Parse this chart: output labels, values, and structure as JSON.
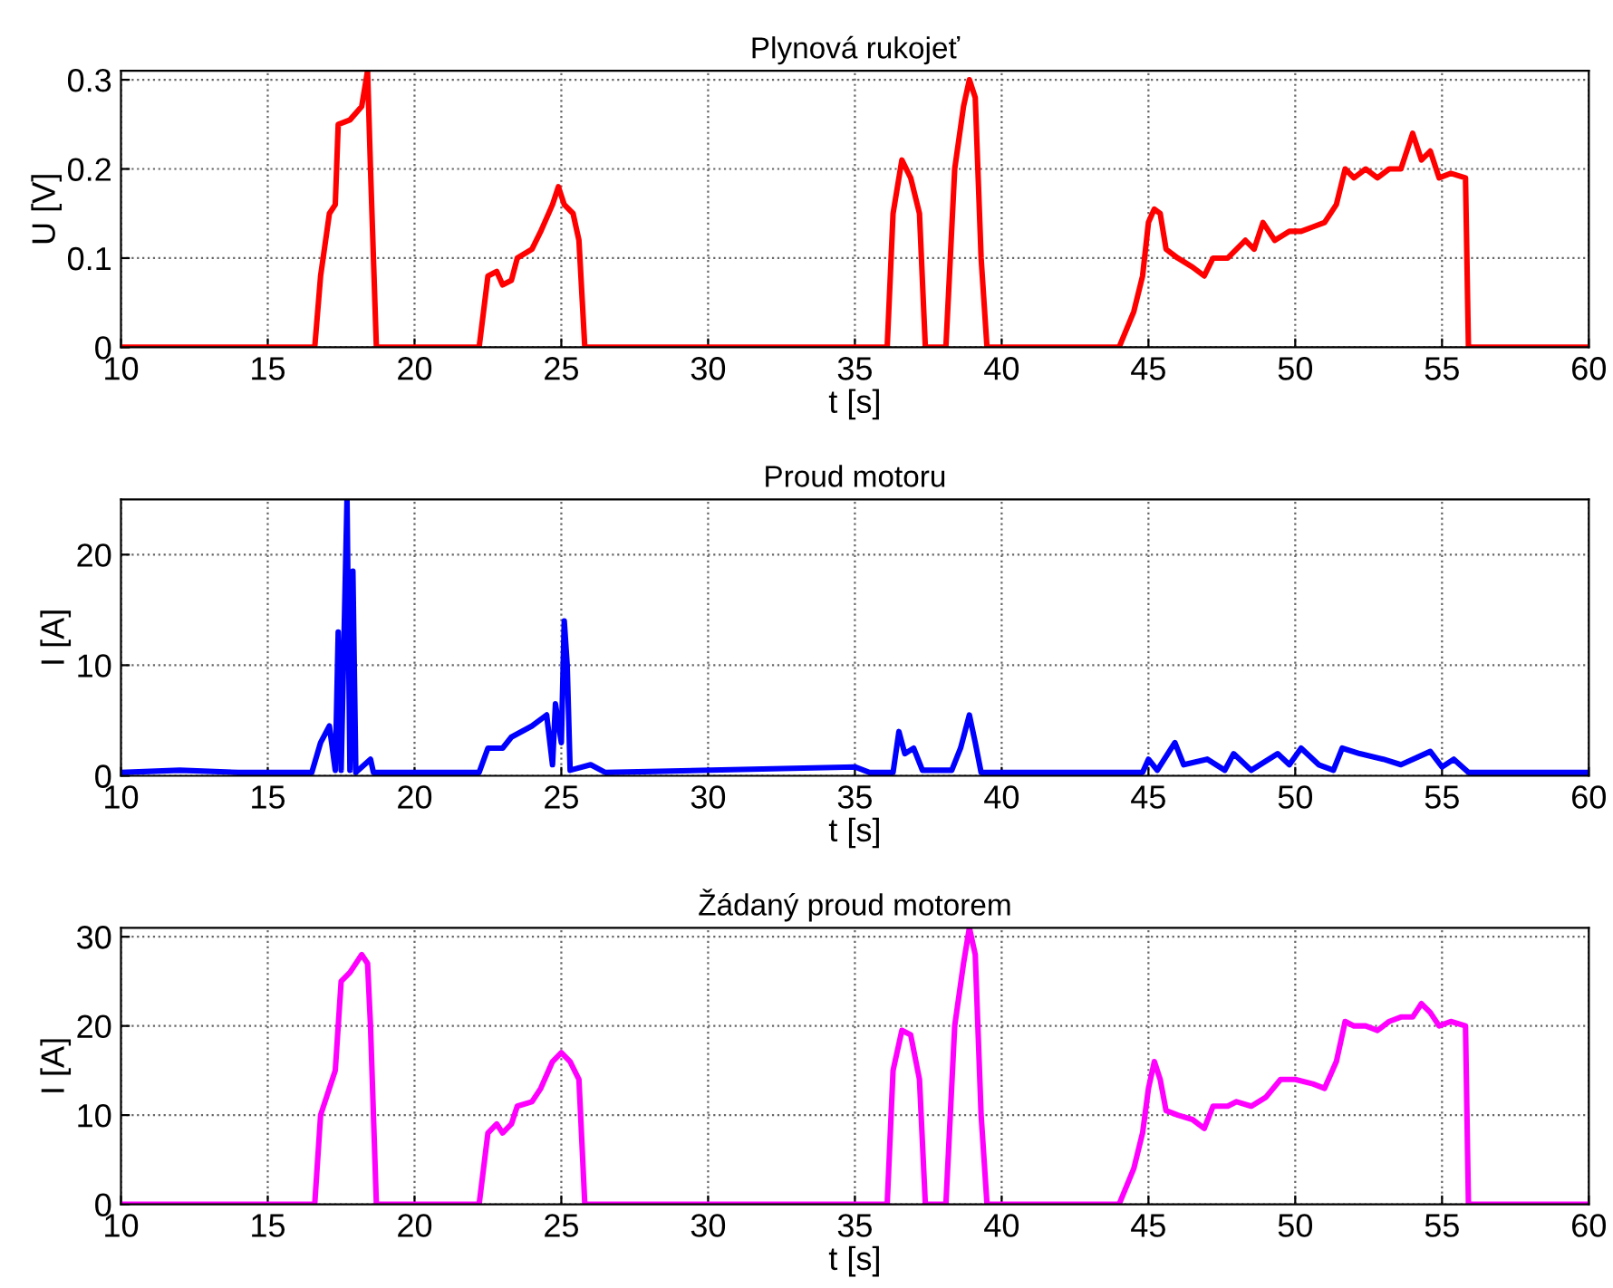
{
  "chart_data": [
    {
      "type": "line",
      "title": "Plynová rukojeť",
      "xlabel": "t [s]",
      "ylabel": "U [V]",
      "xlim": [
        10,
        60
      ],
      "xticks": [
        10,
        15,
        20,
        25,
        30,
        35,
        40,
        45,
        50,
        55,
        60
      ],
      "ylim": [
        0,
        0.31
      ],
      "yticks": [
        0,
        0.1,
        0.2,
        0.3
      ],
      "grid": true,
      "series": [
        {
          "color": "#ff0000",
          "x": [
            10,
            16.6,
            16.8,
            17.1,
            17.3,
            17.4,
            17.8,
            18.2,
            18.4,
            18.5,
            18.7,
            22.2,
            22.5,
            22.8,
            23.0,
            23.3,
            23.5,
            24.0,
            24.3,
            24.7,
            24.9,
            25.1,
            25.4,
            25.6,
            25.8,
            36.1,
            36.3,
            36.6,
            36.9,
            37.2,
            37.4,
            38.1,
            38.4,
            38.7,
            38.9,
            39.1,
            39.3,
            39.5,
            44.0,
            44.5,
            44.8,
            45.0,
            45.2,
            45.4,
            45.6,
            46.0,
            46.5,
            46.9,
            47.2,
            47.7,
            48.0,
            48.3,
            48.6,
            48.9,
            49.3,
            49.8,
            50.2,
            50.6,
            51.0,
            51.4,
            51.7,
            52.0,
            52.4,
            52.8,
            53.2,
            53.6,
            54.0,
            54.3,
            54.6,
            54.9,
            55.3,
            55.8,
            55.9,
            60
          ],
          "values": [
            0,
            0,
            0.08,
            0.15,
            0.16,
            0.25,
            0.255,
            0.27,
            0.31,
            0.2,
            0,
            0,
            0.08,
            0.085,
            0.07,
            0.075,
            0.1,
            0.11,
            0.13,
            0.16,
            0.18,
            0.16,
            0.15,
            0.12,
            0,
            0,
            0.15,
            0.21,
            0.19,
            0.15,
            0,
            0,
            0.2,
            0.27,
            0.3,
            0.28,
            0.1,
            0,
            0,
            0.04,
            0.08,
            0.14,
            0.155,
            0.15,
            0.11,
            0.1,
            0.09,
            0.08,
            0.1,
            0.1,
            0.11,
            0.12,
            0.11,
            0.14,
            0.12,
            0.13,
            0.13,
            0.135,
            0.14,
            0.16,
            0.2,
            0.19,
            0.2,
            0.19,
            0.2,
            0.2,
            0.24,
            0.21,
            0.22,
            0.19,
            0.195,
            0.19,
            0,
            0
          ]
        }
      ]
    },
    {
      "type": "line",
      "title": "Proud motoru",
      "xlabel": "t [s]",
      "ylabel": "I [A]",
      "xlim": [
        10,
        60
      ],
      "xticks": [
        10,
        15,
        20,
        25,
        30,
        35,
        40,
        45,
        50,
        55,
        60
      ],
      "ylim": [
        0,
        25
      ],
      "yticks": [
        0,
        10,
        20
      ],
      "grid": true,
      "series": [
        {
          "color": "#0000ff",
          "x": [
            10,
            12,
            14,
            16.5,
            16.8,
            17.1,
            17.3,
            17.4,
            17.5,
            17.7,
            17.8,
            17.9,
            18.0,
            18.5,
            18.6,
            22.2,
            22.5,
            23.0,
            23.3,
            24.0,
            24.5,
            24.7,
            24.8,
            25.0,
            25.1,
            25.2,
            25.3,
            26.0,
            26.5,
            35.0,
            35.5,
            36.3,
            36.5,
            36.7,
            37.0,
            37.3,
            38.3,
            38.6,
            38.9,
            39.1,
            39.3,
            44.8,
            45.0,
            45.3,
            45.9,
            46.2,
            47.0,
            47.6,
            47.9,
            48.5,
            49.4,
            49.8,
            50.2,
            50.8,
            51.3,
            51.6,
            52.2,
            53.0,
            53.6,
            54.6,
            55.0,
            55.4,
            55.9,
            60
          ],
          "values": [
            0.3,
            0.5,
            0.3,
            0.3,
            3,
            4.5,
            0.5,
            13,
            0.5,
            25,
            0.5,
            18.5,
            0.3,
            1.5,
            0.3,
            0.3,
            2.5,
            2.5,
            3.5,
            4.5,
            5.5,
            1,
            6.5,
            3,
            14,
            10,
            0.5,
            1,
            0.3,
            0.8,
            0.3,
            0.3,
            4,
            2,
            2.5,
            0.5,
            0.5,
            2.5,
            5.5,
            3,
            0.3,
            0.3,
            1.5,
            0.5,
            3,
            1,
            1.5,
            0.5,
            2,
            0.5,
            2,
            1,
            2.5,
            1,
            0.5,
            2.5,
            2,
            1.5,
            1,
            2.2,
            0.8,
            1.5,
            0.3,
            0.3
          ]
        }
      ]
    },
    {
      "type": "line",
      "title": "Žádaný proud motorem",
      "xlabel": "t [s]",
      "ylabel": "I [A]",
      "xlim": [
        10,
        60
      ],
      "xticks": [
        10,
        15,
        20,
        25,
        30,
        35,
        40,
        45,
        50,
        55,
        60
      ],
      "ylim": [
        0,
        31
      ],
      "yticks": [
        0,
        10,
        20,
        30
      ],
      "grid": true,
      "series": [
        {
          "color": "#ff00ff",
          "x": [
            10,
            16.6,
            16.8,
            17.1,
            17.3,
            17.5,
            17.8,
            18.2,
            18.4,
            18.5,
            18.7,
            22.2,
            22.5,
            22.8,
            23.0,
            23.3,
            23.5,
            24.0,
            24.3,
            24.7,
            25.0,
            25.3,
            25.6,
            25.8,
            36.1,
            36.3,
            36.6,
            36.9,
            37.2,
            37.4,
            38.1,
            38.4,
            38.7,
            38.9,
            39.1,
            39.3,
            39.5,
            44.0,
            44.5,
            44.8,
            45.0,
            45.2,
            45.4,
            45.6,
            46.0,
            46.5,
            46.9,
            47.2,
            47.7,
            48.0,
            48.5,
            49.0,
            49.5,
            50.0,
            50.6,
            51.0,
            51.4,
            51.7,
            52.0,
            52.4,
            52.8,
            53.2,
            53.6,
            54.0,
            54.3,
            54.6,
            54.9,
            55.3,
            55.8,
            55.9,
            60
          ],
          "values": [
            0,
            0,
            10,
            13,
            15,
            25,
            26,
            28,
            27,
            20,
            0,
            0,
            8,
            9,
            8,
            9,
            11,
            11.5,
            13,
            16,
            17,
            16,
            14,
            0,
            0,
            15,
            19.5,
            19,
            14,
            0,
            0,
            20,
            27,
            31,
            28,
            10,
            0,
            0,
            4,
            8,
            13,
            16,
            14,
            10.5,
            10,
            9.5,
            8.5,
            11,
            11,
            11.5,
            11,
            12,
            14,
            14,
            13.5,
            13,
            16,
            20.5,
            20,
            20,
            19.5,
            20.5,
            21,
            21,
            22.5,
            21.5,
            20,
            20.5,
            20,
            0,
            0
          ]
        }
      ]
    }
  ]
}
